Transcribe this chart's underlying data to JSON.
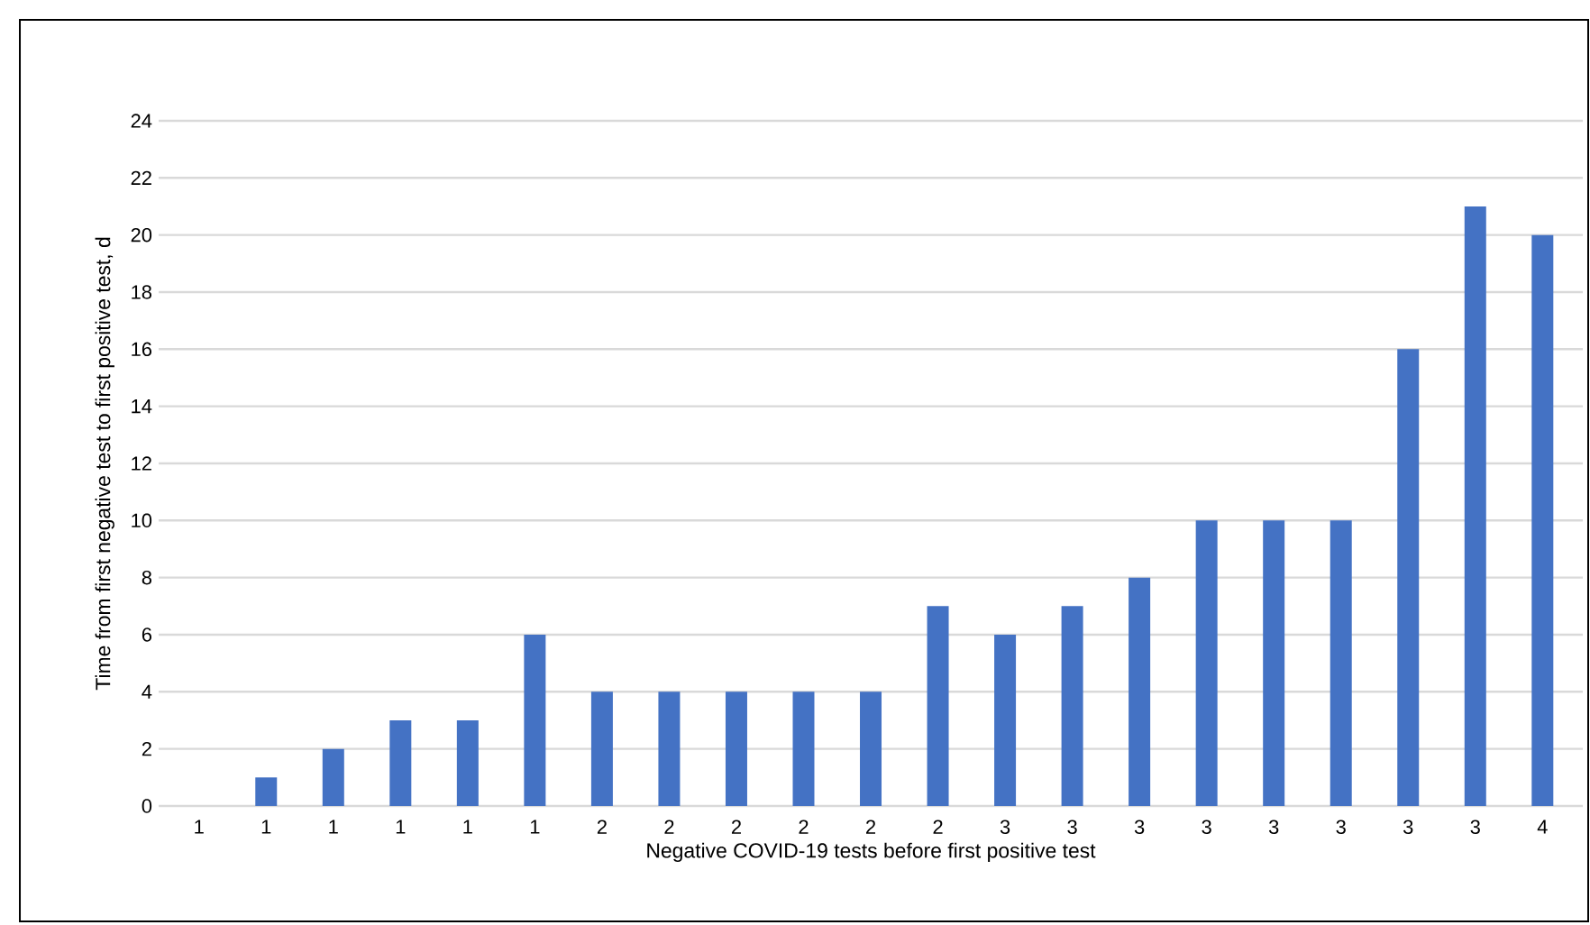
{
  "chart_data": {
    "type": "bar",
    "xlabel": "Negative COVID-19 tests before first positive test",
    "ylabel": "Time from first negative test to first positive test, d",
    "categories": [
      "1",
      "1",
      "1",
      "1",
      "1",
      "1",
      "2",
      "2",
      "2",
      "2",
      "2",
      "2",
      "3",
      "3",
      "3",
      "3",
      "3",
      "3",
      "3",
      "3",
      "4"
    ],
    "values": [
      0,
      1,
      2,
      3,
      3,
      6,
      4,
      4,
      4,
      4,
      4,
      7,
      6,
      7,
      8,
      10,
      10,
      10,
      16,
      21,
      20
    ],
    "color": "#4472c4",
    "ylim": [
      0,
      24
    ],
    "yticks": [
      0,
      2,
      4,
      6,
      8,
      10,
      12,
      14,
      16,
      18,
      20,
      22,
      24
    ],
    "grid": "y"
  }
}
